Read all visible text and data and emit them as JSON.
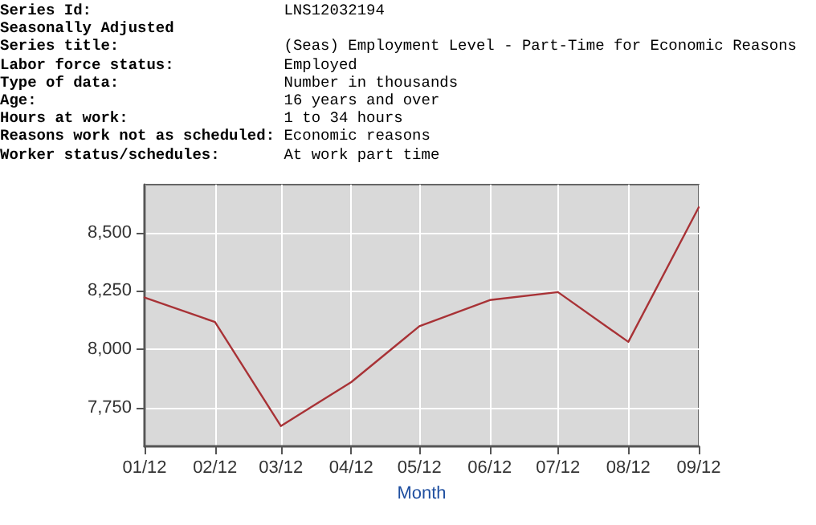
{
  "chart_data": {
    "type": "line",
    "annotations": [
      "Series Id:                     LNS12032194",
      "Seasonally Adjusted",
      "Series title:                  (Seas) Employment Level - Part-Time for Economic Reasons",
      "Labor force status:            Employed",
      "Type of data:                  Number in thousands",
      "Age:                           16 years and over",
      "Hours at work:                 1 to 34 hours",
      "Reasons work not as scheduled: Economic reasons",
      "Worker status/schedules:       At work part time"
    ],
    "xlabel": "Month",
    "x": [
      "2012-01",
      "2012-02",
      "2012-03",
      "2012-04",
      "2012-05",
      "2012-06",
      "2012-07",
      "2012-08",
      "2012-09"
    ],
    "series": [
      {
        "color": "#a83236",
        "values": [
          8222,
          8117,
          7672,
          7860,
          8099,
          8211,
          8245,
          8032,
          8608
        ]
      }
    ],
    "xlim": [
      "2012-01",
      "2012-09"
    ],
    "xticks": [
      {
        "value": "2012-01",
        "label": "01/12"
      },
      {
        "value": "2012-02",
        "label": "02/12"
      },
      {
        "value": "2012-03",
        "label": "03/12"
      },
      {
        "value": "2012-04",
        "label": "04/12"
      },
      {
        "value": "2012-05",
        "label": "05/12"
      },
      {
        "value": "2012-06",
        "label": "06/12"
      },
      {
        "value": "2012-07",
        "label": "07/12"
      },
      {
        "value": "2012-08",
        "label": "08/12"
      },
      {
        "value": "2012-09",
        "label": "09/12"
      }
    ],
    "ylim": [
      7585,
      8705
    ],
    "yticks": [
      {
        "value": 7750,
        "label": "7,750"
      },
      {
        "value": 8000,
        "label": "8,000"
      },
      {
        "value": 8250,
        "label": "8,250"
      },
      {
        "value": 8500,
        "label": "8,500"
      }
    ],
    "grid": true,
    "marker": "none",
    "line_style": "solid"
  }
}
